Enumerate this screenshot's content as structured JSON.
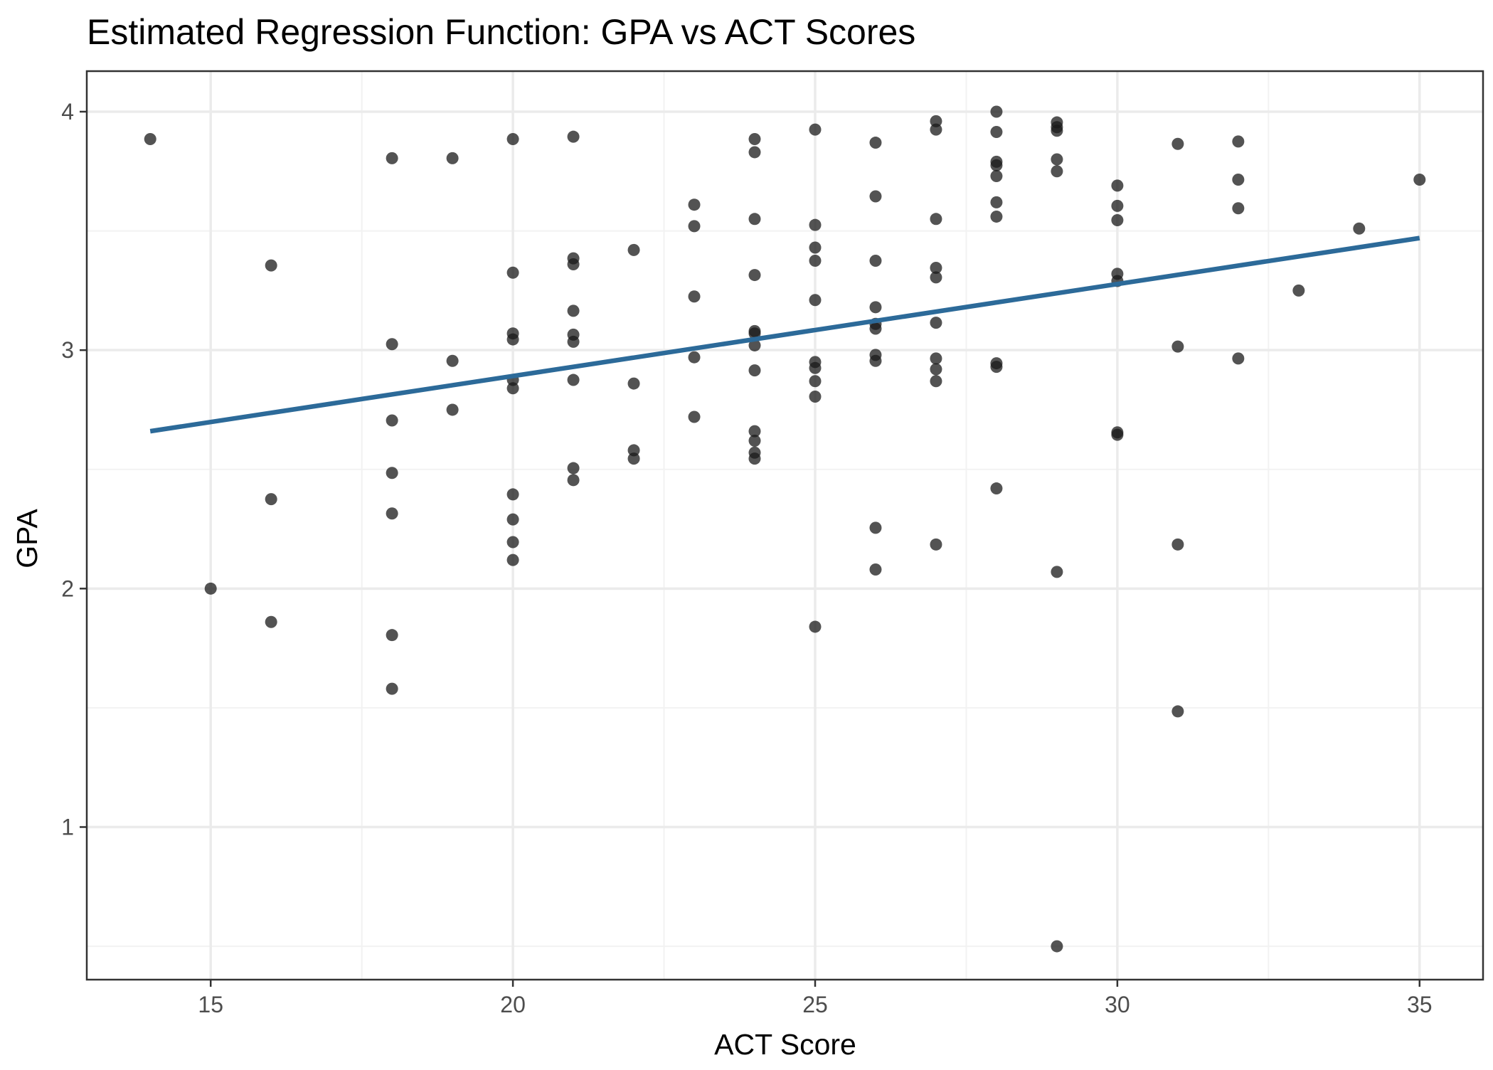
{
  "chart_data": {
    "type": "scatter",
    "title": "Estimated Regression Function: GPA vs ACT Scores",
    "xlabel": "ACT Score",
    "ylabel": "GPA",
    "xlim": [
      12.95,
      36.05
    ],
    "ylim": [
      0.36,
      4.17
    ],
    "x_ticks": [
      15,
      20,
      25,
      30,
      35
    ],
    "y_ticks": [
      1,
      2,
      3,
      4
    ],
    "x_tick_labels": [
      "15",
      "20",
      "25",
      "30",
      "35"
    ],
    "y_tick_labels": [
      "1",
      "2",
      "3",
      "4"
    ],
    "grid": true,
    "legend": "none",
    "point_color": "#1a1a1a",
    "line_color": "#2c6a99",
    "points": [
      [
        14,
        3.885
      ],
      [
        15,
        2.0
      ],
      [
        16,
        3.355
      ],
      [
        16,
        2.375
      ],
      [
        16,
        1.86
      ],
      [
        18,
        3.805
      ],
      [
        18,
        3.025
      ],
      [
        18,
        2.705
      ],
      [
        18,
        2.485
      ],
      [
        18,
        2.315
      ],
      [
        18,
        1.805
      ],
      [
        18,
        1.58
      ],
      [
        19,
        3.805
      ],
      [
        19,
        2.955
      ],
      [
        19,
        2.75
      ],
      [
        20,
        3.885
      ],
      [
        20,
        3.325
      ],
      [
        20,
        3.07
      ],
      [
        20,
        3.045
      ],
      [
        20,
        2.875
      ],
      [
        20,
        2.84
      ],
      [
        20,
        2.395
      ],
      [
        20,
        2.29
      ],
      [
        20,
        2.195
      ],
      [
        20,
        2.12
      ],
      [
        21,
        3.895
      ],
      [
        21,
        3.385
      ],
      [
        21,
        3.36
      ],
      [
        21,
        3.165
      ],
      [
        21,
        3.065
      ],
      [
        21,
        3.035
      ],
      [
        21,
        2.875
      ],
      [
        21,
        2.505
      ],
      [
        21,
        2.455
      ],
      [
        22,
        3.42
      ],
      [
        22,
        2.86
      ],
      [
        22,
        2.58
      ],
      [
        22,
        2.545
      ],
      [
        23,
        3.61
      ],
      [
        23,
        3.52
      ],
      [
        23,
        3.225
      ],
      [
        23,
        2.97
      ],
      [
        23,
        2.72
      ],
      [
        24,
        3.885
      ],
      [
        24,
        3.83
      ],
      [
        24,
        3.55
      ],
      [
        24,
        3.315
      ],
      [
        24,
        3.08
      ],
      [
        24,
        3.07
      ],
      [
        24,
        3.02
      ],
      [
        24,
        2.915
      ],
      [
        24,
        2.66
      ],
      [
        24,
        2.62
      ],
      [
        24,
        2.57
      ],
      [
        24,
        2.545
      ],
      [
        25,
        3.925
      ],
      [
        25,
        3.525
      ],
      [
        25,
        3.43
      ],
      [
        25,
        3.375
      ],
      [
        25,
        3.21
      ],
      [
        25,
        2.95
      ],
      [
        25,
        2.925
      ],
      [
        25,
        2.87
      ],
      [
        25,
        2.805
      ],
      [
        25,
        1.84
      ],
      [
        26,
        3.87
      ],
      [
        26,
        3.645
      ],
      [
        26,
        3.375
      ],
      [
        26,
        3.18
      ],
      [
        26,
        3.11
      ],
      [
        26,
        3.09
      ],
      [
        26,
        2.98
      ],
      [
        26,
        2.955
      ],
      [
        26,
        2.255
      ],
      [
        26,
        2.08
      ],
      [
        27,
        3.96
      ],
      [
        27,
        3.925
      ],
      [
        27,
        3.55
      ],
      [
        27,
        3.345
      ],
      [
        27,
        3.305
      ],
      [
        27,
        3.115
      ],
      [
        27,
        2.965
      ],
      [
        27,
        2.92
      ],
      [
        27,
        2.87
      ],
      [
        27,
        2.185
      ],
      [
        28,
        4.0
      ],
      [
        28,
        3.915
      ],
      [
        28,
        3.79
      ],
      [
        28,
        3.775
      ],
      [
        28,
        3.73
      ],
      [
        28,
        3.62
      ],
      [
        28,
        3.56
      ],
      [
        28,
        2.945
      ],
      [
        28,
        2.93
      ],
      [
        28,
        2.42
      ],
      [
        29,
        3.955
      ],
      [
        29,
        3.935
      ],
      [
        29,
        3.92
      ],
      [
        29,
        3.8
      ],
      [
        29,
        3.75
      ],
      [
        29,
        2.07
      ],
      [
        29,
        0.5
      ],
      [
        30,
        3.69
      ],
      [
        30,
        3.605
      ],
      [
        30,
        3.545
      ],
      [
        30,
        3.32
      ],
      [
        30,
        3.29
      ],
      [
        30,
        2.655
      ],
      [
        30,
        2.645
      ],
      [
        31,
        3.865
      ],
      [
        31,
        3.015
      ],
      [
        31,
        2.185
      ],
      [
        31,
        1.485
      ],
      [
        32,
        3.875
      ],
      [
        32,
        3.715
      ],
      [
        32,
        3.595
      ],
      [
        32,
        2.965
      ],
      [
        33,
        3.25
      ],
      [
        34,
        3.51
      ],
      [
        35,
        3.715
      ]
    ],
    "regression_line": {
      "x": [
        14,
        35
      ],
      "y": [
        2.66,
        3.47
      ]
    }
  }
}
